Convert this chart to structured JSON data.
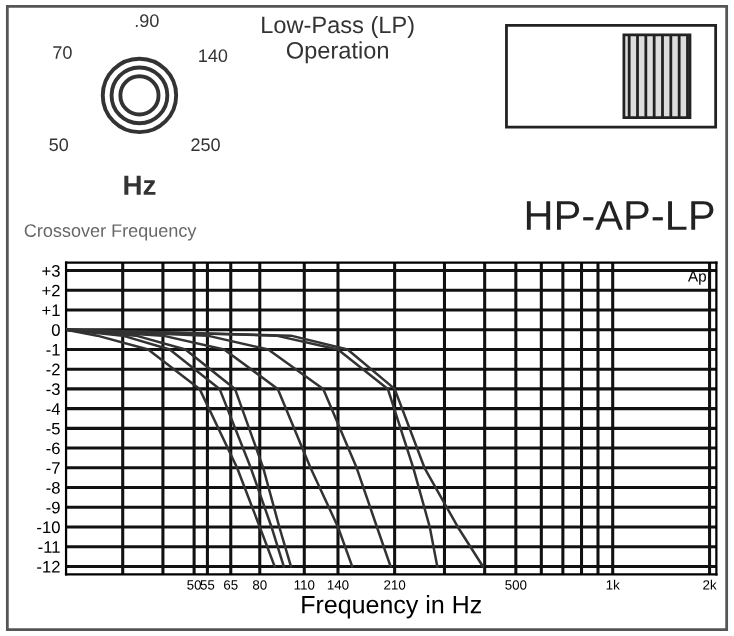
{
  "chart_data": {
    "type": "line",
    "title": "Low-Pass (LP)\nOperation",
    "subtitle": "HP-AP-LP",
    "xlabel": "Frequency in Hz",
    "log": "x",
    "grid": true,
    "legend": false,
    "marker": "none",
    "line_style": "solid",
    "annotations": [
      "70",
      ".90",
      "140",
      "50",
      "250",
      "Hz",
      "Crossover Frequency",
      "Ap"
    ],
    "xlim": [
      20,
      2100
    ],
    "ylim": [
      -12.4,
      3.4
    ],
    "xticks": [
      {
        "value": 30,
        "label": null
      },
      {
        "value": 40,
        "label": null
      },
      50,
      55,
      65,
      80,
      110,
      140,
      210,
      {
        "value": 300,
        "label": null
      },
      {
        "value": 400,
        "label": null
      },
      500,
      {
        "value": 600,
        "label": null
      },
      {
        "value": 700,
        "label": null
      },
      {
        "value": 800,
        "label": null
      },
      {
        "value": 900,
        "label": null
      },
      {
        "value": 1000,
        "label": "1k"
      },
      {
        "value": 2000,
        "label": "2k"
      }
    ],
    "yticks": [
      {
        "value": 3,
        "label": "+3"
      },
      {
        "value": 2,
        "label": "+2"
      },
      {
        "value": 1,
        "label": "+1"
      },
      0,
      -1,
      -2,
      -3,
      -4,
      -5,
      -6,
      -7,
      -8,
      -9,
      -10,
      -11,
      -12
    ],
    "series": [
      {
        "color": "#333333",
        "x": [
          20,
          25,
          36,
          52,
          68,
          80,
          89
        ],
        "values": [
          0,
          -0.3,
          -1,
          -3,
          -7,
          -10,
          -12
        ]
      },
      {
        "color": "#333333",
        "x": [
          20,
          30,
          42,
          60,
          75,
          87,
          95
        ],
        "values": [
          0,
          -0.3,
          -1,
          -3,
          -7,
          -10,
          -12
        ]
      },
      {
        "color": "#333333",
        "x": [
          20,
          33,
          47,
          67,
          82,
          92,
          100
        ],
        "values": [
          0,
          -0.3,
          -1,
          -3,
          -7,
          -10,
          -12
        ]
      },
      {
        "color": "#333333",
        "x": [
          20,
          40,
          62,
          91,
          115,
          140,
          155
        ],
        "values": [
          0,
          -0.3,
          -1,
          -3,
          -7,
          -10,
          -12
        ]
      },
      {
        "color": "#333333",
        "x": [
          20,
          55,
          85,
          126,
          160,
          185,
          204
        ],
        "values": [
          0,
          -0.3,
          -1,
          -3,
          -7,
          -10,
          -12
        ]
      },
      {
        "color": "#333333",
        "x": [
          20,
          90,
          140,
          200,
          240,
          270,
          285
        ],
        "values": [
          0,
          -0.3,
          -1,
          -3,
          -7,
          -10,
          -12
        ]
      },
      {
        "color": "#333333",
        "x": [
          20,
          100,
          150,
          210,
          260,
          330,
          395
        ],
        "values": [
          0,
          -0.3,
          -1,
          -3,
          -7,
          -10,
          -12
        ]
      }
    ]
  }
}
